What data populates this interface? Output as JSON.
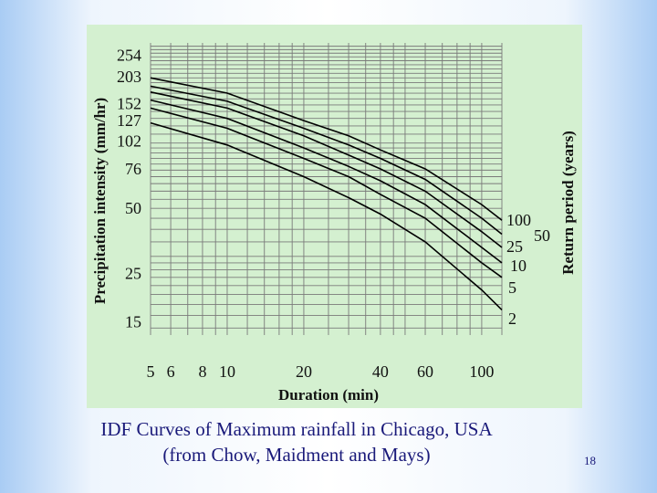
{
  "caption": {
    "line1": "IDF Curves of Maximum rainfall in Chicago, USA",
    "line2": "(from Chow, Maidment and Mays)"
  },
  "slide_number": "18",
  "chart_data": {
    "type": "line",
    "title": "",
    "xlabel": "Duration (min)",
    "ylabel": "Precipitation intensity (mm/hr)",
    "legend_title": "Return period (years)",
    "x_scale": "log",
    "y_scale": "log",
    "xlim": [
      5,
      120
    ],
    "ylim": [
      13,
      290
    ],
    "x_ticks": [
      5,
      6,
      8,
      10,
      20,
      40,
      60,
      100
    ],
    "y_ticks": [
      15,
      25,
      50,
      76,
      102,
      127,
      152,
      203,
      254
    ],
    "grid": true,
    "x": [
      5,
      10,
      20,
      30,
      40,
      60,
      100,
      120
    ],
    "series": [
      {
        "name": "100",
        "values": [
          200,
          170,
          127,
          108,
          93,
          76,
          52,
          44
        ]
      },
      {
        "name": "50",
        "values": [
          183,
          156,
          117,
          98,
          85,
          68,
          45,
          38
        ]
      },
      {
        "name": "25",
        "values": [
          172,
          145,
          108,
          88,
          76,
          60,
          39,
          33
        ]
      },
      {
        "name": "10",
        "values": [
          158,
          130,
          95,
          78,
          67,
          52,
          33,
          28
        ]
      },
      {
        "name": "5",
        "values": [
          145,
          117,
          85,
          70,
          58,
          45,
          28,
          24
        ]
      },
      {
        "name": "2",
        "values": [
          124,
          98,
          70,
          56,
          47,
          35,
          21,
          17
        ]
      }
    ],
    "series_labels": [
      "100",
      "50",
      "25",
      "10",
      "5",
      "2"
    ]
  }
}
